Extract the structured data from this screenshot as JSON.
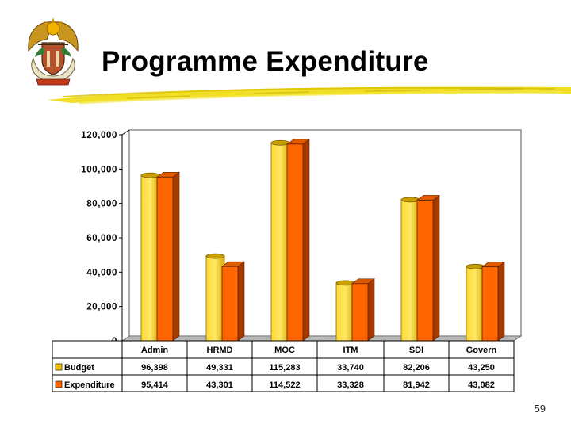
{
  "header": {
    "title": "Programme Expenditure",
    "logo_icon": "coat-of-arms-icon"
  },
  "footer": {
    "page_number": "59"
  },
  "colors": {
    "budget": "#F2C200",
    "expenditure": "#FF6600",
    "accent": "#E8D000"
  },
  "chart_data": {
    "type": "bar",
    "title": "",
    "xlabel": "",
    "ylabel": "",
    "ylim": [
      0,
      120000
    ],
    "yticks": [
      "0",
      "20,000",
      "40,000",
      "60,000",
      "80,000",
      "100,000",
      "120,000"
    ],
    "categories": [
      "Admin",
      "HRMD",
      "MOC",
      "ITM",
      "SDI",
      "Govern"
    ],
    "series": [
      {
        "name": "Budget",
        "values": [
          96398,
          49331,
          115283,
          33740,
          82206,
          43250
        ],
        "labels": [
          "96,398",
          "49,331",
          "115,283",
          "33,740",
          "82,206",
          "43,250"
        ]
      },
      {
        "name": "Expenditure",
        "values": [
          95414,
          43301,
          114522,
          33328,
          81942,
          43082
        ],
        "labels": [
          "95,414",
          "43,301",
          "114,522",
          "33,328",
          "81,942",
          "43,082"
        ]
      }
    ],
    "grid": false,
    "legend": "data-table-left",
    "style": "3d"
  }
}
